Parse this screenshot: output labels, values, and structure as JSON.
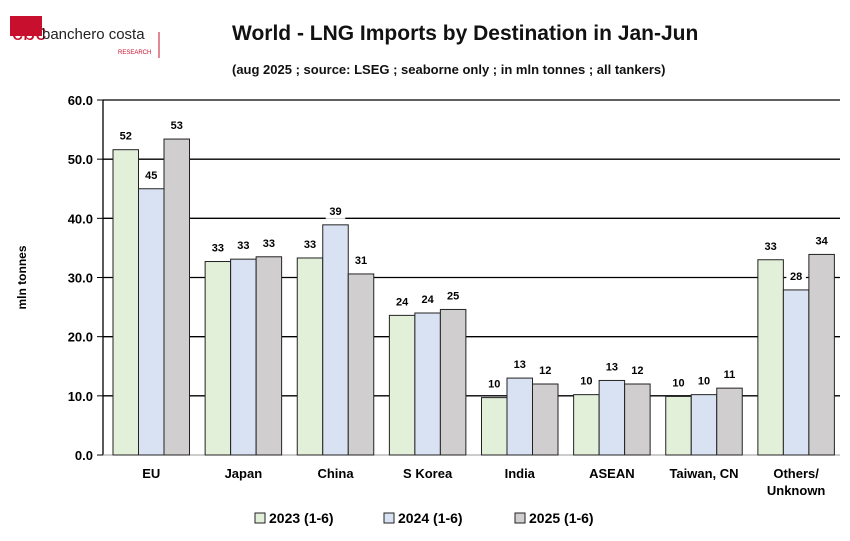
{
  "logo": {
    "name": "banchero costa",
    "sub": "RESEARCH"
  },
  "chart_data": {
    "type": "bar",
    "title": "World - LNG Imports by Destination in Jan-Jun",
    "subtitle": "(aug 2025 ; source: LSEG ; seaborne only ; in mln tonnes ; all tankers)",
    "xlabel": "",
    "ylabel": "mln tonnes",
    "ylim": [
      0,
      60
    ],
    "yticks": [
      "0.0",
      "10.0",
      "20.0",
      "30.0",
      "40.0",
      "50.0",
      "60.0"
    ],
    "grid": true,
    "legend": "bottom",
    "categories": [
      "EU",
      "Japan",
      "China",
      "S Korea",
      "India",
      "ASEAN",
      "Taiwan, CN",
      "Others/\nUnknown"
    ],
    "series": [
      {
        "name": "2023 (1-6)",
        "color": "#e2efd9",
        "values": [
          51.6,
          32.7,
          33.3,
          23.6,
          9.7,
          10.2,
          9.9,
          33.0
        ],
        "labels": [
          "52",
          "33",
          "33",
          "24",
          "10",
          "10",
          "10",
          "33"
        ]
      },
      {
        "name": "2024 (1-6)",
        "color": "#d9e2f3",
        "values": [
          45.0,
          33.1,
          38.9,
          24.0,
          13.0,
          12.6,
          10.2,
          27.9
        ],
        "labels": [
          "45",
          "33",
          "39",
          "24",
          "13",
          "13",
          "10",
          "28"
        ]
      },
      {
        "name": "2025 (1-6)",
        "color": "#d0cece",
        "values": [
          53.4,
          33.5,
          30.6,
          24.6,
          12.0,
          12.0,
          11.3,
          33.9
        ],
        "labels": [
          "53",
          "33",
          "31",
          "25",
          "12",
          "12",
          "11",
          "34"
        ]
      }
    ]
  }
}
